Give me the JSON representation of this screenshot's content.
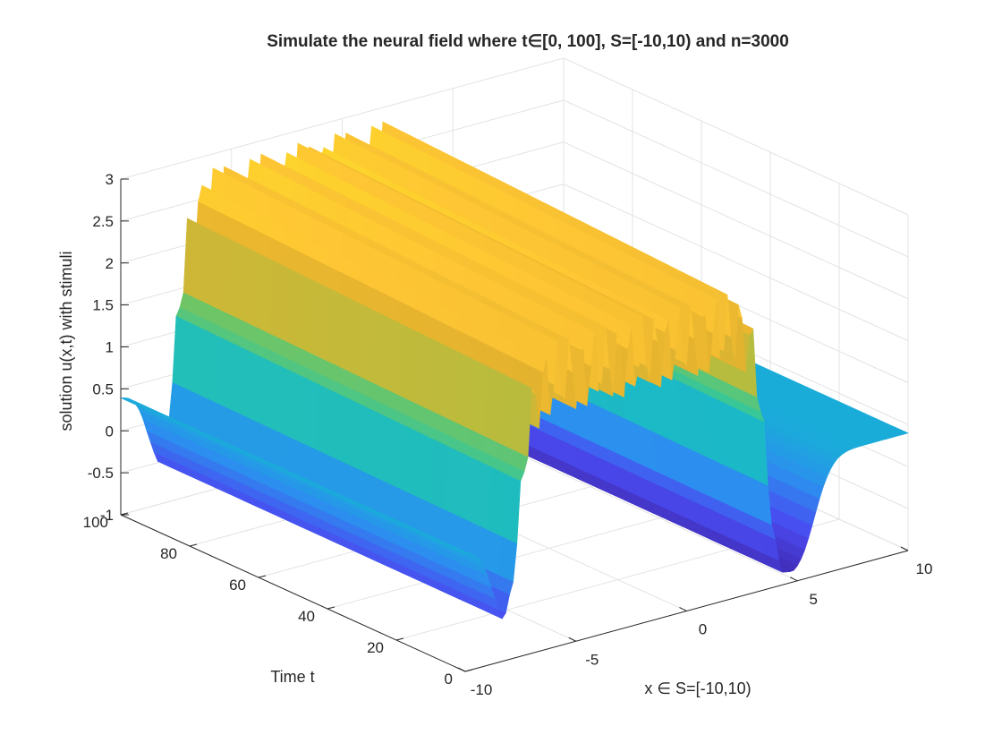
{
  "chart_data": {
    "type": "surface",
    "title": "Simulate the neural field where t∈[0, 100], S=[-10,10) and n=3000",
    "xlabel": "x ∈ S=[-10,10)",
    "ylabel": "Time t",
    "zlabel": "solution u(x,t) with stimuli",
    "xlim": [
      -10,
      10
    ],
    "ylim": [
      0,
      100
    ],
    "zlim": [
      -1,
      3
    ],
    "x_ticks": [
      "-10",
      "-5",
      "0",
      "5",
      "10"
    ],
    "y_ticks": [
      "0",
      "20",
      "40",
      "60",
      "80",
      "100"
    ],
    "z_ticks": [
      "-1",
      "-0.5",
      "0",
      "0.5",
      "1",
      "1.5",
      "2",
      "2.5",
      "3"
    ],
    "grid": true,
    "colormap": "parula",
    "colors": [
      "#3e26a8",
      "#4a4af0",
      "#2c8fef",
      "#16b3d4",
      "#2bc7a4",
      "#8ac44d",
      "#e5b32e",
      "#fec634",
      "#f9fb15"
    ],
    "surface_features": {
      "baseline_level": 0.4,
      "trough_level": -0.8,
      "bump_x_range": [
        -7.5,
        3.5
      ],
      "bump_peak_level": 3.0,
      "bump_ripple_count": 20,
      "side_troughs_x": [
        -8,
        5
      ]
    }
  }
}
